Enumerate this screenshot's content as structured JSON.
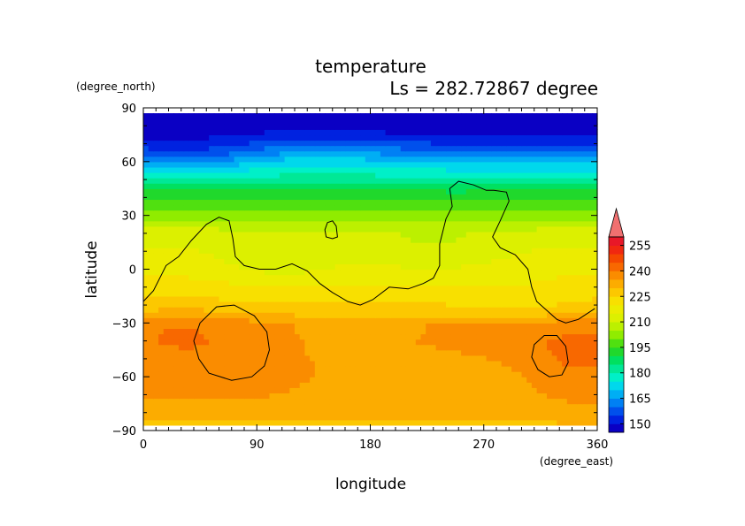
{
  "chart_data": {
    "type": "heatmap",
    "title": "temperature",
    "subtitle": "Ls = 282.72867 degree",
    "xlabel": "longitude",
    "ylabel": "latitude",
    "x_units": "(degree_east)",
    "y_units": "(degree_north)",
    "xlim": [
      0,
      360
    ],
    "ylim": [
      -90,
      90
    ],
    "data_lat_range": [
      -87,
      87
    ],
    "x_ticks": [
      0,
      90,
      180,
      270,
      360
    ],
    "y_ticks": [
      -90,
      -60,
      -30,
      0,
      30,
      60,
      90
    ],
    "colorbar": {
      "levels": [
        145,
        150,
        155,
        160,
        165,
        170,
        175,
        180,
        185,
        190,
        195,
        200,
        205,
        210,
        215,
        220,
        225,
        230,
        235,
        240,
        245,
        250,
        255,
        260
      ],
      "colors": [
        "#0a00c4",
        "#0022e0",
        "#0050ec",
        "#0080f4",
        "#00aef4",
        "#00d8ec",
        "#00f0c8",
        "#00e896",
        "#00e060",
        "#20d82c",
        "#50e010",
        "#90ec00",
        "#bcf000",
        "#dcf000",
        "#ecec00",
        "#f8e000",
        "#fcc800",
        "#fcac00",
        "#fa8c00",
        "#f86800",
        "#f44800",
        "#f02810",
        "#e81828"
      ],
      "extend_color": "#f07070",
      "tick_labels": [
        150,
        165,
        180,
        195,
        210,
        225,
        240,
        255
      ],
      "extend": "max"
    },
    "profile": {
      "lat": [
        -87,
        -80,
        -75,
        -70,
        -60,
        -50,
        -40,
        -30,
        -25,
        -20,
        -10,
        0,
        10,
        20,
        25,
        30,
        35,
        40,
        45,
        50,
        55,
        60,
        65,
        70,
        75,
        80,
        87
      ],
      "temp": [
        229,
        231,
        233,
        234,
        235,
        236,
        237,
        236,
        230,
        226,
        222,
        219,
        216,
        213,
        208,
        203,
        199,
        195,
        188,
        182,
        175,
        168,
        160,
        154,
        149,
        147,
        146
      ]
    },
    "anomalies": [
      {
        "lon": 45,
        "lat": -55,
        "dlon": 70,
        "dlat": 20,
        "amp": 4
      },
      {
        "lon": 30,
        "lat": -30,
        "dlon": 50,
        "dlat": 12,
        "amp": 3
      },
      {
        "lon": 345,
        "lat": -50,
        "dlon": 45,
        "dlat": 25,
        "amp": 5
      },
      {
        "lon": 110,
        "lat": 5,
        "dlon": 50,
        "dlat": 14,
        "amp": -6
      },
      {
        "lon": 230,
        "lat": 10,
        "dlon": 60,
        "dlat": 18,
        "amp": -5
      },
      {
        "lon": 140,
        "lat": 65,
        "dlon": 80,
        "dlat": 12,
        "amp": 6
      },
      {
        "lon": 40,
        "lat": 63,
        "dlon": 50,
        "dlat": 10,
        "amp": -5
      },
      {
        "lon": 160,
        "lat": -40,
        "dlon": 80,
        "dlat": 14,
        "amp": -3
      },
      {
        "lon": 240,
        "lat": -62,
        "dlon": 70,
        "dlat": 12,
        "amp": -4
      },
      {
        "lon": 300,
        "lat": -20,
        "dlon": 40,
        "dlat": 12,
        "amp": -3
      }
    ],
    "contours": [
      {
        "name": "continent-contour-main",
        "points": [
          [
            0,
            -18
          ],
          [
            8,
            -12
          ],
          [
            18,
            2
          ],
          [
            28,
            7
          ],
          [
            38,
            16
          ],
          [
            50,
            25
          ],
          [
            60,
            29
          ],
          [
            68,
            27
          ],
          [
            71,
            17
          ],
          [
            73,
            7
          ],
          [
            80,
            2
          ],
          [
            92,
            0
          ],
          [
            105,
            0
          ],
          [
            118,
            3
          ],
          [
            130,
            -1
          ],
          [
            140,
            -8
          ],
          [
            150,
            -13
          ],
          [
            162,
            -18
          ],
          [
            172,
            -20
          ],
          [
            182,
            -17
          ],
          [
            195,
            -10
          ],
          [
            210,
            -11
          ],
          [
            222,
            -8
          ],
          [
            230,
            -5
          ],
          [
            235,
            2
          ],
          [
            235,
            14
          ],
          [
            240,
            28
          ],
          [
            245,
            35
          ],
          [
            243,
            45
          ],
          [
            250,
            49
          ],
          [
            262,
            47
          ],
          [
            272,
            44
          ],
          [
            278,
            44
          ],
          [
            288,
            43
          ],
          [
            290,
            38
          ],
          [
            283,
            27
          ],
          [
            277,
            18
          ],
          [
            283,
            12
          ],
          [
            295,
            8
          ],
          [
            305,
            0
          ],
          [
            308,
            -10
          ],
          [
            312,
            -18
          ],
          [
            320,
            -23
          ],
          [
            328,
            -28
          ],
          [
            335,
            -30
          ],
          [
            345,
            -28
          ],
          [
            358,
            -22
          ]
        ]
      },
      {
        "name": "continent-contour-island",
        "points": [
          [
            144,
            22
          ],
          [
            146,
            26
          ],
          [
            150,
            27
          ],
          [
            153,
            24
          ],
          [
            154,
            18
          ],
          [
            150,
            17
          ],
          [
            145,
            18
          ]
        ]
      },
      {
        "name": "basin-contour-left",
        "points": [
          [
            45,
            -30
          ],
          [
            58,
            -21
          ],
          [
            72,
            -20
          ],
          [
            88,
            -26
          ],
          [
            98,
            -35
          ],
          [
            100,
            -45
          ],
          [
            96,
            -54
          ],
          [
            86,
            -60
          ],
          [
            70,
            -62
          ],
          [
            52,
            -58
          ],
          [
            44,
            -50
          ],
          [
            40,
            -40
          ]
        ]
      },
      {
        "name": "basin-contour-right",
        "points": [
          [
            318,
            -37
          ],
          [
            328,
            -37
          ],
          [
            335,
            -43
          ],
          [
            337,
            -52
          ],
          [
            332,
            -59
          ],
          [
            322,
            -60
          ],
          [
            313,
            -56
          ],
          [
            308,
            -49
          ],
          [
            310,
            -42
          ]
        ]
      }
    ]
  }
}
